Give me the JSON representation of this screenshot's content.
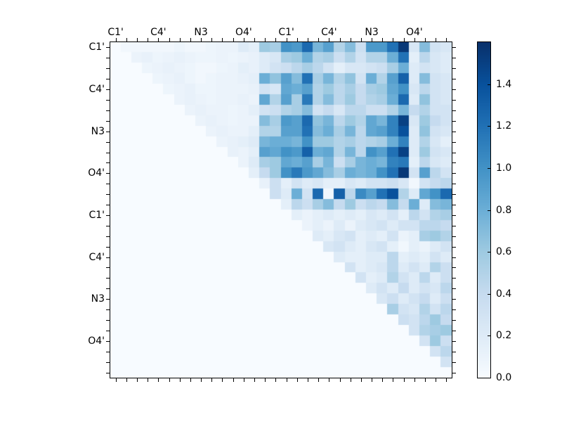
{
  "figure": {
    "background": "#ffffff",
    "frame_color": "#000000"
  },
  "chart_data": {
    "type": "heatmap",
    "title": "",
    "xlabel": "",
    "ylabel": "",
    "colormap": "Blues",
    "colormap_stops": [
      "#f7fbff",
      "#deebf7",
      "#c6dbef",
      "#9ecae1",
      "#6baed6",
      "#4292c6",
      "#2171b5",
      "#08519c",
      "#08306b"
    ],
    "vmin": 0.0,
    "vmax": 1.6,
    "size": 32,
    "grid": false,
    "legend_position": "right-colorbar",
    "x_tick_labels": [
      "C1'",
      "C4'",
      "N3",
      "O4'",
      "C1'",
      "C4'",
      "N3",
      "O4'"
    ],
    "y_tick_labels": [
      "C1'",
      "C4'",
      "N3",
      "O4'",
      "C1'",
      "C4'",
      "N3",
      "O4'"
    ],
    "label_cell_positions": [
      0,
      4,
      8,
      12,
      16,
      20,
      24,
      28
    ],
    "colorbar": {
      "tick_labels": [
        "0.0",
        "0.2",
        "0.4",
        "0.6",
        "0.8",
        "1.0",
        "1.2",
        "1.4"
      ],
      "tick_values": [
        0.0,
        0.2,
        0.4,
        0.6,
        0.8,
        1.0,
        1.2,
        1.4
      ]
    },
    "matrix": [
      [
        0,
        0.05,
        0.05,
        0.05,
        0.05,
        0.05,
        0.08,
        0.05,
        0.05,
        0.08,
        0.1,
        0.1,
        0.2,
        0.15,
        0.6,
        0.55,
        1.0,
        0.95,
        1.25,
        0.75,
        0.9,
        0.5,
        0.7,
        0.35,
        0.95,
        0.95,
        1.2,
        1.55,
        0.25,
        0.7,
        0.3,
        0.25
      ],
      [
        0,
        0,
        0.1,
        0.12,
        0.08,
        0.1,
        0.12,
        0.1,
        0.08,
        0.08,
        0.1,
        0.08,
        0.1,
        0.12,
        0.2,
        0.25,
        0.55,
        0.6,
        0.8,
        0.5,
        0.55,
        0.35,
        0.5,
        0.3,
        0.5,
        0.5,
        0.8,
        1.2,
        0.15,
        0.45,
        0.25,
        0.2
      ],
      [
        0,
        0,
        0,
        0.08,
        0.1,
        0.12,
        0.1,
        0.08,
        0.05,
        0.05,
        0.08,
        0.1,
        0.15,
        0.12,
        0.2,
        0.3,
        0.35,
        0.45,
        0.55,
        0.45,
        0.3,
        0.15,
        0.25,
        0.25,
        0.3,
        0.35,
        0.55,
        0.8,
        0.2,
        0.3,
        0.25,
        0.2
      ],
      [
        0,
        0,
        0,
        0,
        0.08,
        0.1,
        0.12,
        0.08,
        0.05,
        0.08,
        0.1,
        0.1,
        0.12,
        0.15,
        0.8,
        0.65,
        0.9,
        0.7,
        1.2,
        0.55,
        0.75,
        0.5,
        0.65,
        0.3,
        0.8,
        0.5,
        0.9,
        1.3,
        0.2,
        0.7,
        0.3,
        0.25
      ],
      [
        0,
        0,
        0,
        0,
        0,
        0.08,
        0.1,
        0.12,
        0.08,
        0.08,
        0.1,
        0.1,
        0.1,
        0.12,
        0.3,
        0.25,
        0.85,
        0.8,
        0.9,
        0.5,
        0.6,
        0.45,
        0.55,
        0.4,
        0.55,
        0.6,
        0.85,
        1.0,
        0.25,
        0.45,
        0.3,
        0.25
      ],
      [
        0,
        0,
        0,
        0,
        0,
        0,
        0.1,
        0.12,
        0.1,
        0.08,
        0.1,
        0.1,
        0.12,
        0.1,
        0.85,
        0.5,
        0.9,
        0.55,
        1.15,
        0.5,
        0.7,
        0.45,
        0.6,
        0.4,
        0.5,
        0.55,
        0.8,
        1.25,
        0.2,
        0.65,
        0.3,
        0.25
      ],
      [
        0,
        0,
        0,
        0,
        0,
        0,
        0,
        0.1,
        0.12,
        0.1,
        0.1,
        0.08,
        0.1,
        0.15,
        0.3,
        0.35,
        0.5,
        0.55,
        0.7,
        0.3,
        0.4,
        0.25,
        0.45,
        0.45,
        0.35,
        0.35,
        0.5,
        0.75,
        0.4,
        0.5,
        0.3,
        0.3
      ],
      [
        0,
        0,
        0,
        0,
        0,
        0,
        0,
        0,
        0.1,
        0.12,
        0.1,
        0.08,
        0.1,
        0.1,
        0.7,
        0.55,
        0.95,
        0.9,
        1.25,
        0.65,
        0.75,
        0.45,
        0.6,
        0.5,
        0.85,
        0.75,
        1.1,
        1.5,
        0.25,
        0.6,
        0.4,
        0.3
      ],
      [
        0,
        0,
        0,
        0,
        0,
        0,
        0,
        0,
        0,
        0.1,
        0.12,
        0.1,
        0.1,
        0.15,
        0.5,
        0.5,
        0.9,
        0.9,
        1.2,
        0.7,
        0.8,
        0.55,
        0.75,
        0.45,
        0.85,
        0.9,
        1.1,
        1.4,
        0.2,
        0.65,
        0.3,
        0.25
      ],
      [
        0,
        0,
        0,
        0,
        0,
        0,
        0,
        0,
        0,
        0,
        0.1,
        0.12,
        0.15,
        0.2,
        0.75,
        0.8,
        0.8,
        0.75,
        1.0,
        0.6,
        0.6,
        0.5,
        0.55,
        0.45,
        0.5,
        0.55,
        0.8,
        1.1,
        0.2,
        0.5,
        0.25,
        0.15
      ],
      [
        0,
        0,
        0,
        0,
        0,
        0,
        0,
        0,
        0,
        0,
        0,
        0.12,
        0.1,
        0.15,
        0.9,
        0.85,
        1.0,
        0.95,
        1.3,
        0.8,
        0.85,
        0.5,
        0.75,
        0.45,
        1.0,
        0.9,
        1.2,
        1.5,
        0.2,
        0.6,
        0.3,
        0.25
      ],
      [
        0,
        0,
        0,
        0,
        0,
        0,
        0,
        0,
        0,
        0,
        0,
        0,
        0.1,
        0.2,
        0.55,
        0.6,
        0.85,
        0.8,
        0.9,
        0.55,
        0.75,
        0.35,
        0.55,
        0.75,
        0.8,
        0.75,
        1.1,
        1.15,
        0.15,
        0.45,
        0.25,
        0.2
      ],
      [
        0,
        0,
        0,
        0,
        0,
        0,
        0,
        0,
        0,
        0,
        0,
        0,
        0,
        0.15,
        0.4,
        0.6,
        1.0,
        1.15,
        0.95,
        0.85,
        0.7,
        0.55,
        0.8,
        0.75,
        0.8,
        1.0,
        1.2,
        1.55,
        0.3,
        0.9,
        0.45,
        0.3
      ],
      [
        0,
        0,
        0,
        0,
        0,
        0,
        0,
        0,
        0,
        0,
        0,
        0,
        0,
        0,
        0.12,
        0.35,
        0.15,
        0.3,
        0.2,
        0.25,
        0.15,
        0.15,
        0.25,
        0.2,
        0.3,
        0.3,
        0.35,
        0.25,
        0.05,
        0.3,
        0.4,
        0.45
      ],
      [
        0,
        0,
        0,
        0,
        0,
        0,
        0,
        0,
        0,
        0,
        0,
        0,
        0,
        0,
        0,
        0.35,
        0.2,
        0.8,
        0.3,
        1.25,
        0.05,
        1.3,
        0.45,
        1.05,
        0.9,
        1.2,
        1.4,
        0.5,
        0.2,
        0.85,
        1.0,
        1.25
      ],
      [
        0,
        0,
        0,
        0,
        0,
        0,
        0,
        0,
        0,
        0,
        0,
        0,
        0,
        0,
        0,
        0,
        0.15,
        0.45,
        0.35,
        0.55,
        0.7,
        0.4,
        0.6,
        0.35,
        0.45,
        0.4,
        0.7,
        0.4,
        0.8,
        0.2,
        0.7,
        0.75
      ],
      [
        0,
        0,
        0,
        0,
        0,
        0,
        0,
        0,
        0,
        0,
        0,
        0,
        0,
        0,
        0,
        0,
        0,
        0.15,
        0.1,
        0.15,
        0.2,
        0.15,
        0.2,
        0.15,
        0.25,
        0.2,
        0.3,
        0.15,
        0.45,
        0.3,
        0.5,
        0.55
      ],
      [
        0,
        0,
        0,
        0,
        0,
        0,
        0,
        0,
        0,
        0,
        0,
        0,
        0,
        0,
        0,
        0,
        0,
        0,
        0.1,
        0.15,
        0.1,
        0.2,
        0.1,
        0.2,
        0.25,
        0.3,
        0.2,
        0.3,
        0.3,
        0.45,
        0.45,
        0.4
      ],
      [
        0,
        0,
        0,
        0,
        0,
        0,
        0,
        0,
        0,
        0,
        0,
        0,
        0,
        0,
        0,
        0,
        0,
        0,
        0,
        0.2,
        0.15,
        0.25,
        0.3,
        0.15,
        0.2,
        0.15,
        0.3,
        0.1,
        0.15,
        0.55,
        0.6,
        0.5
      ],
      [
        0,
        0,
        0,
        0,
        0,
        0,
        0,
        0,
        0,
        0,
        0,
        0,
        0,
        0,
        0,
        0,
        0,
        0,
        0,
        0,
        0.25,
        0.3,
        0.2,
        0.15,
        0.25,
        0.3,
        0.15,
        0.05,
        0.15,
        0.1,
        0.2,
        0.3
      ],
      [
        0,
        0,
        0,
        0,
        0,
        0,
        0,
        0,
        0,
        0,
        0,
        0,
        0,
        0,
        0,
        0,
        0,
        0,
        0,
        0,
        0,
        0.2,
        0.15,
        0.15,
        0.2,
        0.2,
        0.45,
        0.15,
        0.2,
        0.15,
        0.3,
        0.2
      ],
      [
        0,
        0,
        0,
        0,
        0,
        0,
        0,
        0,
        0,
        0,
        0,
        0,
        0,
        0,
        0,
        0,
        0,
        0,
        0,
        0,
        0,
        0,
        0.3,
        0.15,
        0.2,
        0.25,
        0.45,
        0.2,
        0.3,
        0.2,
        0.5,
        0.35
      ],
      [
        0,
        0,
        0,
        0,
        0,
        0,
        0,
        0,
        0,
        0,
        0,
        0,
        0,
        0,
        0,
        0,
        0,
        0,
        0,
        0,
        0,
        0,
        0,
        0.3,
        0.15,
        0.2,
        0.5,
        0.3,
        0.2,
        0.45,
        0.2,
        0.35
      ],
      [
        0,
        0,
        0,
        0,
        0,
        0,
        0,
        0,
        0,
        0,
        0,
        0,
        0,
        0,
        0,
        0,
        0,
        0,
        0,
        0,
        0,
        0,
        0,
        0,
        0.2,
        0.3,
        0.2,
        0.4,
        0.2,
        0.3,
        0.25,
        0.45
      ],
      [
        0,
        0,
        0,
        0,
        0,
        0,
        0,
        0,
        0,
        0,
        0,
        0,
        0,
        0,
        0,
        0,
        0,
        0,
        0,
        0,
        0,
        0,
        0,
        0,
        0,
        0.25,
        0.35,
        0.2,
        0.3,
        0.4,
        0.2,
        0.35
      ],
      [
        0,
        0,
        0,
        0,
        0,
        0,
        0,
        0,
        0,
        0,
        0,
        0,
        0,
        0,
        0,
        0,
        0,
        0,
        0,
        0,
        0,
        0,
        0,
        0,
        0,
        0,
        0.55,
        0.3,
        0.25,
        0.5,
        0.3,
        0.45
      ],
      [
        0,
        0,
        0,
        0,
        0,
        0,
        0,
        0,
        0,
        0,
        0,
        0,
        0,
        0,
        0,
        0,
        0,
        0,
        0,
        0,
        0,
        0,
        0,
        0,
        0,
        0,
        0,
        0.35,
        0.3,
        0.45,
        0.6,
        0.4
      ],
      [
        0,
        0,
        0,
        0,
        0,
        0,
        0,
        0,
        0,
        0,
        0,
        0,
        0,
        0,
        0,
        0,
        0,
        0,
        0,
        0,
        0,
        0,
        0,
        0,
        0,
        0,
        0,
        0,
        0.3,
        0.5,
        0.55,
        0.6
      ],
      [
        0,
        0,
        0,
        0,
        0,
        0,
        0,
        0,
        0,
        0,
        0,
        0,
        0,
        0,
        0,
        0,
        0,
        0,
        0,
        0,
        0,
        0,
        0,
        0,
        0,
        0,
        0,
        0,
        0,
        0.3,
        0.6,
        0.35
      ],
      [
        0,
        0,
        0,
        0,
        0,
        0,
        0,
        0,
        0,
        0,
        0,
        0,
        0,
        0,
        0,
        0,
        0,
        0,
        0,
        0,
        0,
        0,
        0,
        0,
        0,
        0,
        0,
        0,
        0,
        0,
        0.3,
        0.45
      ],
      [
        0,
        0,
        0,
        0,
        0,
        0,
        0,
        0,
        0,
        0,
        0,
        0,
        0,
        0,
        0,
        0,
        0,
        0,
        0,
        0,
        0,
        0,
        0,
        0,
        0,
        0,
        0,
        0,
        0,
        0,
        0,
        0.3
      ],
      [
        0,
        0,
        0,
        0,
        0,
        0,
        0,
        0,
        0,
        0,
        0,
        0,
        0,
        0,
        0,
        0,
        0,
        0,
        0,
        0,
        0,
        0,
        0,
        0,
        0,
        0,
        0,
        0,
        0,
        0,
        0,
        0
      ]
    ]
  }
}
